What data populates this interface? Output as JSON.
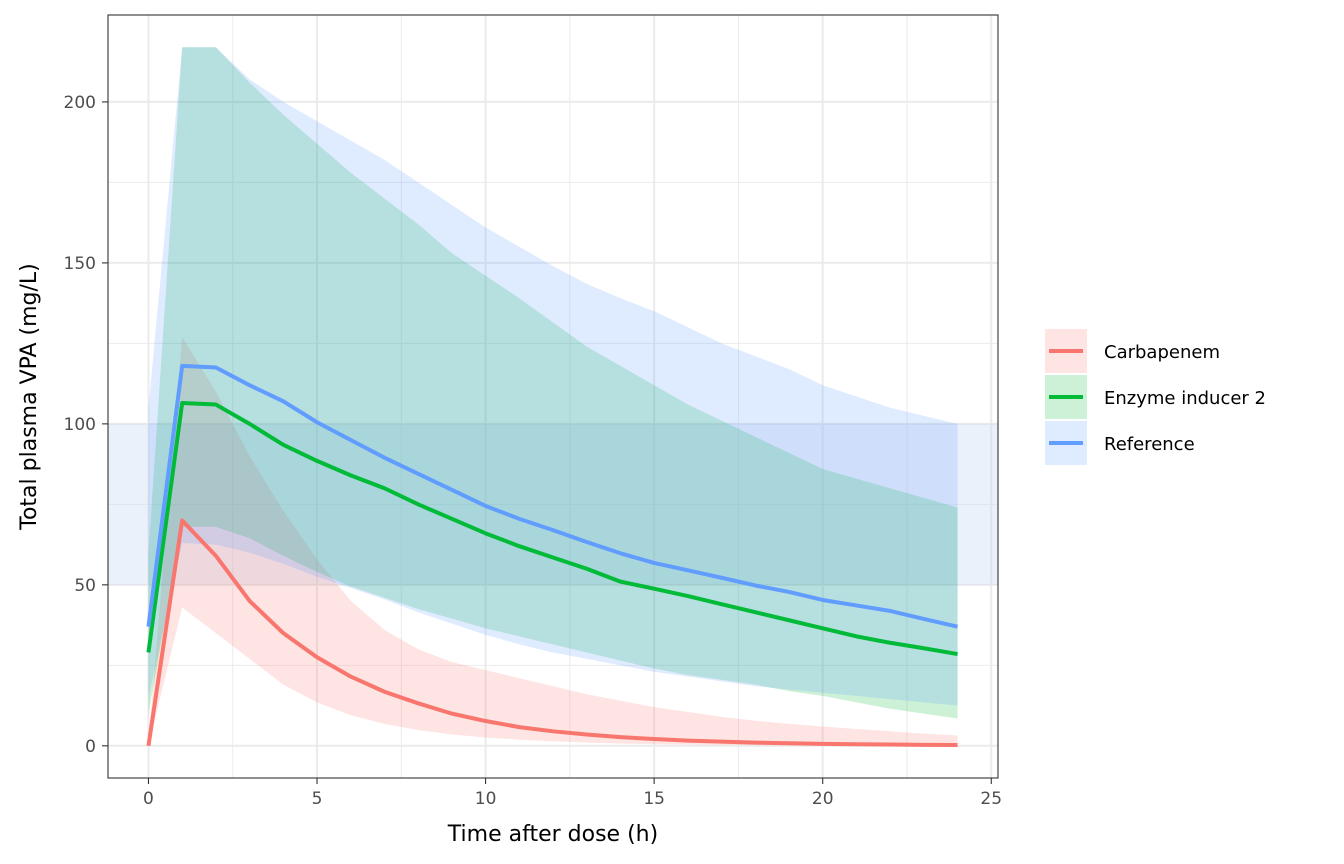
{
  "chart_data": {
    "type": "line",
    "title": "",
    "xlabel": "Time after dose (h)",
    "ylabel": "Total plasma VPA (mg/L)",
    "xlim": [
      -1.2,
      25.2
    ],
    "ylim": [
      -10,
      227
    ],
    "x_ticks": [
      0,
      5,
      10,
      15,
      20,
      25
    ],
    "x_tick_labels": [
      "0",
      "5",
      "10",
      "15",
      "20",
      "25"
    ],
    "y_ticks": [
      0,
      50,
      100,
      150,
      200
    ],
    "y_tick_labels": [
      "0",
      "50",
      "100",
      "150",
      "200"
    ],
    "grid": true,
    "legend_position": "right",
    "therapeutic_band": {
      "ymin": 50,
      "ymax": 100,
      "xmin": -1.2,
      "xmax": 25.2,
      "color": "#c6d8f0"
    },
    "x": [
      0,
      1,
      2,
      3,
      4,
      5,
      6,
      7,
      8,
      9,
      10,
      11,
      12,
      13,
      14,
      15,
      16,
      17,
      18,
      19,
      20,
      21,
      22,
      23,
      24
    ],
    "series": [
      {
        "name": "Carbapenem",
        "color": "#F8766D",
        "values": [
          0,
          70,
          59,
          45,
          35,
          27.5,
          21.5,
          16.8,
          13.2,
          10,
          7.7,
          5.8,
          4.5,
          3.5,
          2.7,
          2.1,
          1.6,
          1.3,
          1.0,
          0.8,
          0.6,
          0.5,
          0.4,
          0.3,
          0.25
        ],
        "lower": [
          0,
          43,
          35,
          27,
          19,
          13.5,
          9.5,
          6.8,
          4.9,
          3.5,
          2.6,
          1.9,
          1.4,
          1.0,
          0.7,
          0.5,
          0.4,
          0.3,
          0.2,
          0.15,
          0.1,
          0.08,
          0.06,
          0.05,
          0.04
        ],
        "upper": [
          1,
          127,
          110,
          90,
          73,
          58,
          45,
          36,
          30,
          26,
          23.5,
          21,
          18.5,
          16,
          14,
          12,
          10.5,
          9,
          7.8,
          6.8,
          6,
          5.2,
          4.5,
          3.8,
          3.2
        ]
      },
      {
        "name": "Enzyme inducer 2",
        "color": "#00BA38",
        "values": [
          29,
          106.5,
          106,
          100,
          93.5,
          88.5,
          84,
          80,
          75,
          70.5,
          66,
          62,
          58.5,
          55,
          51,
          48.8,
          46.5,
          44,
          41.5,
          39,
          36.5,
          34,
          32,
          30.3,
          28.5
        ],
        "lower": [
          10,
          68,
          68,
          64.5,
          59,
          54,
          49.5,
          46,
          42.5,
          39.5,
          36.5,
          34,
          31.5,
          29,
          26.5,
          24,
          22,
          20.5,
          19,
          17,
          15.5,
          13.5,
          11.5,
          10,
          8.5
        ],
        "upper": [
          60,
          217,
          217,
          206,
          196,
          187,
          178,
          170,
          162,
          153,
          146,
          139,
          131.5,
          124,
          118,
          112,
          106,
          101,
          96,
          91,
          86,
          83,
          80,
          77,
          74
        ]
      },
      {
        "name": "Reference",
        "color": "#619CFF",
        "values": [
          37,
          118,
          117.5,
          112,
          107,
          100.5,
          95,
          89.5,
          84.5,
          79.5,
          74.5,
          70.5,
          67,
          63.3,
          59.8,
          56.8,
          54.5,
          52.2,
          49.8,
          47.8,
          45.3,
          43.6,
          41.9,
          39.4,
          37
        ],
        "lower": [
          15,
          63,
          62.5,
          60,
          56.5,
          52.5,
          49,
          45.5,
          41.5,
          38,
          34.5,
          31.5,
          29,
          27,
          25,
          23,
          21.5,
          20,
          18.5,
          17.5,
          16.5,
          15.5,
          14.5,
          13.5,
          12.5
        ],
        "upper": [
          105,
          217,
          217,
          207,
          200,
          194,
          188,
          182,
          175,
          168,
          161,
          155,
          149,
          143.5,
          139,
          135,
          130,
          125,
          121,
          117,
          112,
          108.5,
          105,
          102.5,
          100
        ]
      }
    ]
  }
}
